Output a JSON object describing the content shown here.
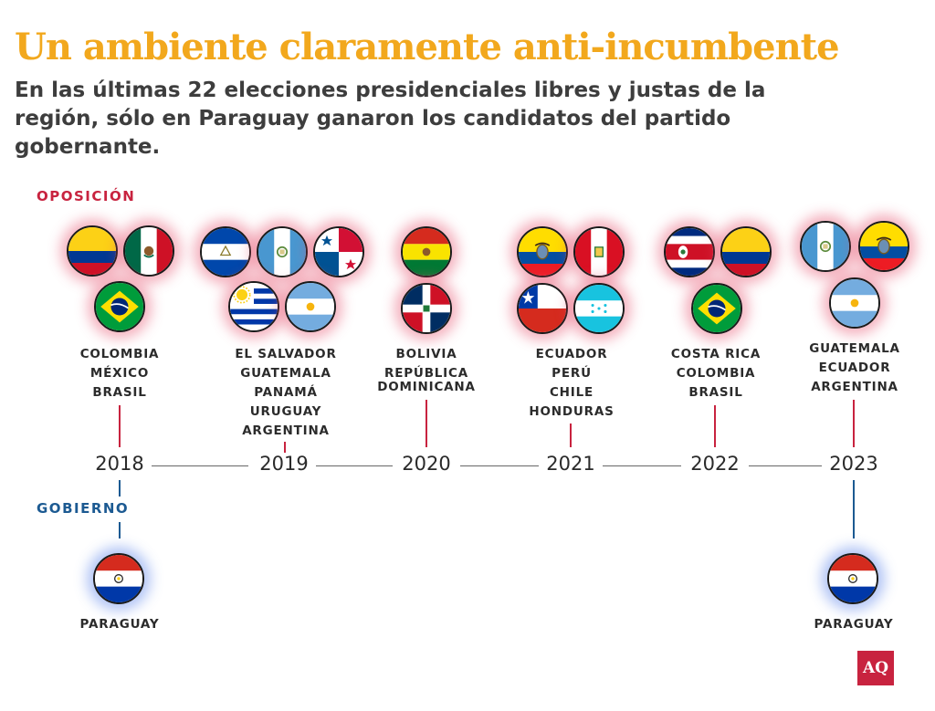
{
  "header": {
    "title": "Un ambiente claramente anti-incumbente",
    "subtitle": "En las últimas 22 elecciones presidenciales libres y justas de la región, sólo en Paraguay ganaron los candidatos del partido gobernante."
  },
  "labels": {
    "opposition": "OPOSICIÓN",
    "government": "GOBIERNO"
  },
  "colors": {
    "title": "#f2a81d",
    "opposition": "#c8233f",
    "government": "#1c5a92"
  },
  "years": [
    "2018",
    "2019",
    "2020",
    "2021",
    "2022",
    "2023"
  ],
  "groups": {
    "y2018": {
      "names": [
        "COLOMBIA",
        "MÉXICO",
        "BRASIL"
      ]
    },
    "y2019": {
      "names": [
        "EL SALVADOR",
        "GUATEMALA",
        "PANAMÁ",
        "URUGUAY",
        "ARGENTINA"
      ]
    },
    "y2020": {
      "names": [
        "BOLIVIA",
        "REPÚBLICA",
        "DOMINICANA"
      ]
    },
    "y2021": {
      "names": [
        "ECUADOR",
        "PERÚ",
        "CHILE",
        "HONDURAS"
      ]
    },
    "y2022": {
      "names": [
        "COSTA RICA",
        "COLOMBIA",
        "BRASIL"
      ]
    },
    "y2023": {
      "names": [
        "GUATEMALA",
        "ECUADOR",
        "ARGENTINA"
      ]
    }
  },
  "government": {
    "y2018": {
      "name": "PARAGUAY"
    },
    "y2023": {
      "name": "PARAGUAY"
    }
  },
  "flag_icons": [
    "colombia-flag-icon",
    "mexico-flag-icon",
    "brazil-flag-icon",
    "el-salvador-flag-icon",
    "guatemala-flag-icon",
    "panama-flag-icon",
    "uruguay-flag-icon",
    "argentina-flag-icon",
    "bolivia-flag-icon",
    "dominican-republic-flag-icon",
    "ecuador-flag-icon",
    "peru-flag-icon",
    "chile-flag-icon",
    "honduras-flag-icon",
    "costa-rica-flag-icon",
    "paraguay-flag-icon"
  ],
  "logo": "AQ"
}
